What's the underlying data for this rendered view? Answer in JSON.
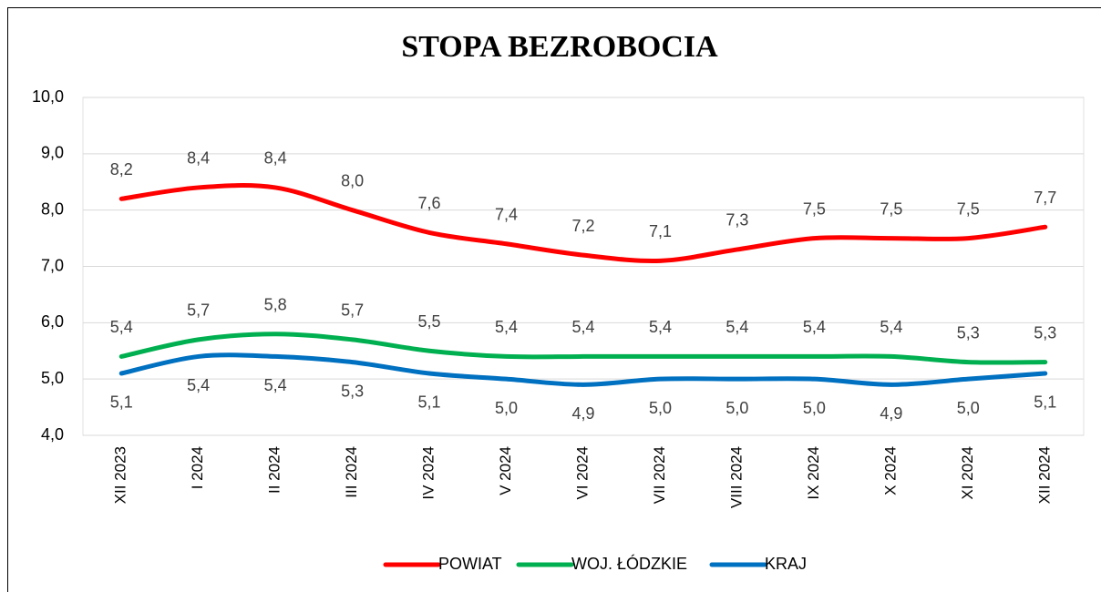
{
  "chart_data": {
    "type": "line",
    "title": "STOPA BEZROBOCIA",
    "categories": [
      "XII 2023",
      "I 2024",
      "II 2024",
      "III 2024",
      "IV 2024",
      "V 2024",
      "VI 2024",
      "VII 2024",
      "VIII 2024",
      "IX 2024",
      "X 2024",
      "XI 2024",
      "XII 2024"
    ],
    "series": [
      {
        "name": "POWIAT",
        "color": "#ff0000",
        "values": [
          8.2,
          8.4,
          8.4,
          8.0,
          7.6,
          7.4,
          7.2,
          7.1,
          7.3,
          7.5,
          7.5,
          7.5,
          7.7
        ],
        "value_labels": [
          "8,2",
          "8,4",
          "8,4",
          "8,0",
          "7,6",
          "7,4",
          "7,2",
          "7,1",
          "7,3",
          "7,5",
          "7,5",
          "7,5",
          "7,7"
        ]
      },
      {
        "name": "WOJ. ŁÓDZKIE",
        "color": "#00b050",
        "values": [
          5.4,
          5.7,
          5.8,
          5.7,
          5.5,
          5.4,
          5.4,
          5.4,
          5.4,
          5.4,
          5.4,
          5.3,
          5.3
        ],
        "value_labels": [
          "5,4",
          "5,7",
          "5,8",
          "5,7",
          "5,5",
          "5,4",
          "5,4",
          "5,4",
          "5,4",
          "5,4",
          "5,4",
          "5,3",
          "5,3"
        ]
      },
      {
        "name": "KRAJ",
        "color": "#0070c0",
        "values": [
          5.1,
          5.4,
          5.4,
          5.3,
          5.1,
          5.0,
          4.9,
          5.0,
          5.0,
          5.0,
          4.9,
          5.0,
          5.1
        ],
        "value_labels": [
          "5,1",
          "5,4",
          "5,4",
          "5,3",
          "5,1",
          "5,0",
          "4,9",
          "5,0",
          "5,0",
          "5,0",
          "4,9",
          "5,0",
          "5,1"
        ]
      }
    ],
    "ylim": [
      4,
      10
    ],
    "yticks": [
      {
        "value": 4,
        "label": "4,0"
      },
      {
        "value": 5,
        "label": "5,0"
      },
      {
        "value": 6,
        "label": "6,0"
      },
      {
        "value": 7,
        "label": "7,0"
      },
      {
        "value": 8,
        "label": "8,0"
      },
      {
        "value": 9,
        "label": "9,0"
      },
      {
        "value": 10,
        "label": "10,0"
      }
    ],
    "grid": true,
    "smooth": true,
    "legend": "bottom"
  }
}
